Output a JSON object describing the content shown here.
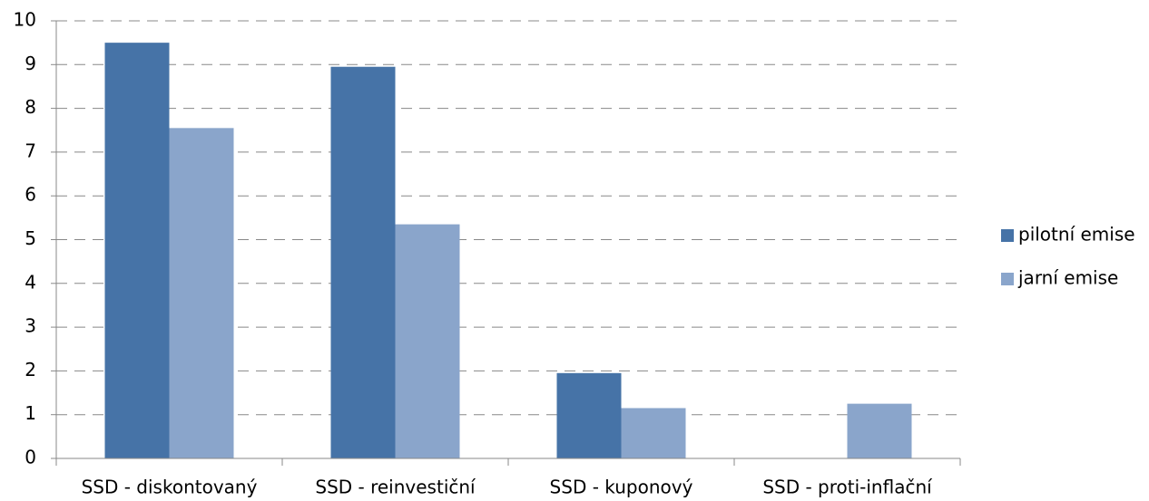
{
  "chart_data": {
    "type": "bar",
    "categories": [
      "SSD - diskontovaný",
      "SSD - reinvestiční",
      "SSD - kuponový",
      "SSD - proti-inflační"
    ],
    "series": [
      {
        "name": "pilotní emise",
        "color": "#4673a7",
        "values": [
          9.5,
          8.95,
          1.95,
          0
        ]
      },
      {
        "name": "jarní emise",
        "color": "#8aa5cb",
        "values": [
          7.55,
          5.35,
          1.15,
          1.25
        ]
      }
    ],
    "ylim": [
      0,
      10
    ],
    "yticks": [
      0,
      1,
      2,
      3,
      4,
      5,
      6,
      7,
      8,
      9,
      10
    ],
    "grid": true,
    "legend": "right"
  }
}
